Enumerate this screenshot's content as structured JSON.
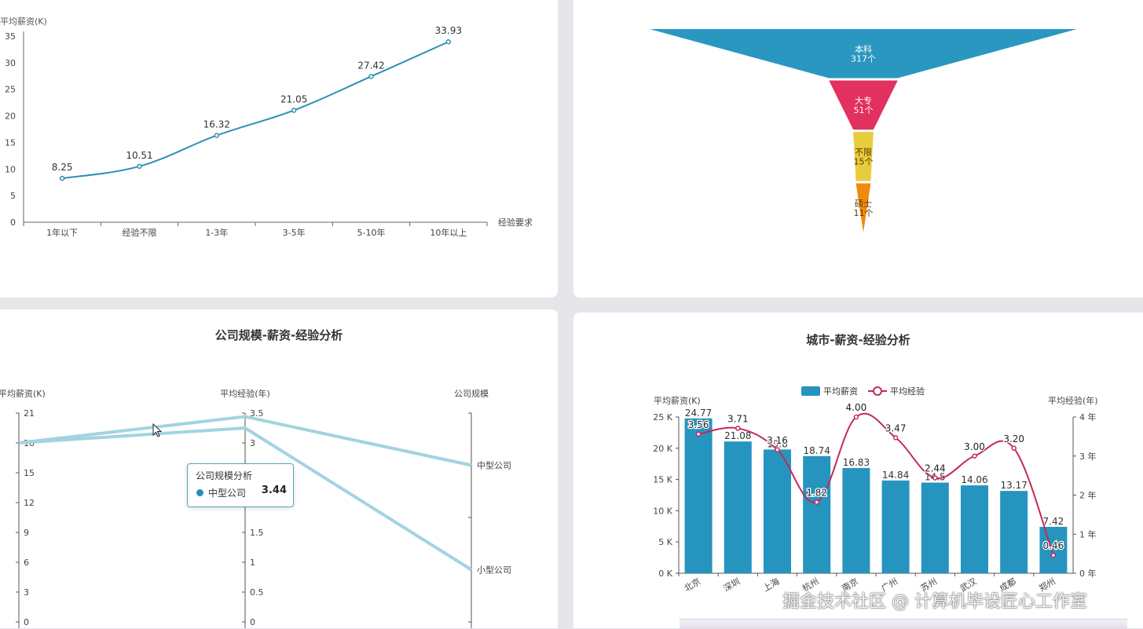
{
  "chart_data": [
    {
      "type": "line",
      "ylabel": "平均薪资(K)",
      "xlabel": "经验要求",
      "categories": [
        "1年以下",
        "经验不限",
        "1-3年",
        "3-5年",
        "5-10年",
        "10年以上"
      ],
      "values": [
        8.25,
        10.51,
        16.32,
        21.05,
        27.42,
        33.93
      ],
      "labels": [
        "8.25",
        "10.51",
        "16.32",
        "21.05",
        "27.42",
        "33.93"
      ],
      "ylim": [
        0,
        35
      ],
      "yticks": [
        "0",
        "5",
        "10",
        "15",
        "20",
        "25",
        "30",
        "35"
      ],
      "color": "#2f8fb5"
    },
    {
      "type": "funnel",
      "items": [
        {
          "name": "本科",
          "label": "317个",
          "value": 317,
          "color": "#2a97c1"
        },
        {
          "name": "大专",
          "label": "51个",
          "value": 51,
          "color": "#e2305f"
        },
        {
          "name": "不限",
          "label": "15个",
          "value": 15,
          "color": "#e8cc3d"
        },
        {
          "name": "硕士",
          "label": "11个",
          "value": 11,
          "color": "#f08a0c"
        }
      ]
    },
    {
      "type": "parallel",
      "title": "公司规模-薪资-经验分析",
      "axes": [
        {
          "name": "平均薪资(K)",
          "min": 0,
          "max": 21,
          "ticks": [
            "0",
            "3",
            "6",
            "9",
            "12",
            "15",
            "18",
            "21"
          ]
        },
        {
          "name": "平均经验(年)",
          "min": 0,
          "max": 3.5,
          "ticks": [
            "0",
            "0.5",
            "1",
            "1.5",
            "2",
            "2.5",
            "3",
            "3.5"
          ]
        },
        {
          "name": "公司规模",
          "categories": [
            "小型公司",
            "中型公司"
          ]
        }
      ],
      "series": [
        {
          "name": "中型公司",
          "values": [
            18,
            3.44,
            "中型公司"
          ]
        },
        {
          "name": "小型公司",
          "values": [
            18,
            3.25,
            "小型公司"
          ]
        }
      ],
      "color": "#a3d3e0",
      "tooltip": {
        "title": "公司规模分析",
        "name": "中型公司",
        "value": "3.44"
      }
    },
    {
      "type": "bar+line",
      "title": "城市-薪资-经验分析",
      "categories": [
        "北京",
        "深圳",
        "上海",
        "杭州",
        "南京",
        "广州",
        "苏州",
        "武汉",
        "成都",
        "郑州"
      ],
      "series": [
        {
          "name": "平均薪资",
          "type": "bar",
          "values": [
            24.77,
            21.08,
            19.8,
            18.74,
            16.83,
            14.84,
            14.5,
            14.06,
            13.17,
            7.42
          ],
          "labels": [
            "24.77",
            "21.08",
            "19.8",
            "18.74",
            "16.83",
            "14.84",
            "14.5",
            "14.06",
            "13.17",
            "7.42"
          ],
          "color": "#2595bf"
        },
        {
          "name": "平均经验",
          "type": "line",
          "values": [
            3.56,
            3.71,
            3.16,
            1.82,
            4.0,
            3.47,
            2.44,
            3.0,
            3.2,
            0.46
          ],
          "labels": [
            "3.56",
            "3.71",
            "3.16",
            "1.82",
            "4.00",
            "3.47",
            "2.44",
            "3.00",
            "3.20",
            "0.46"
          ],
          "color": "#c42a5a"
        }
      ],
      "ylabel": "平均薪资(K)",
      "y2label": "平均经验(年)",
      "ylim": [
        0,
        25
      ],
      "y2lim": [
        0,
        4
      ],
      "yticks": [
        "0 K",
        "5 K",
        "10 K",
        "15 K",
        "20 K",
        "25 K"
      ],
      "y2ticks": [
        "0 年",
        "1 年",
        "2 年",
        "3 年",
        "4 年"
      ],
      "legend": "top-center"
    }
  ],
  "watermark": "掘金技术社区 @ 计算机毕设匠心工作室"
}
